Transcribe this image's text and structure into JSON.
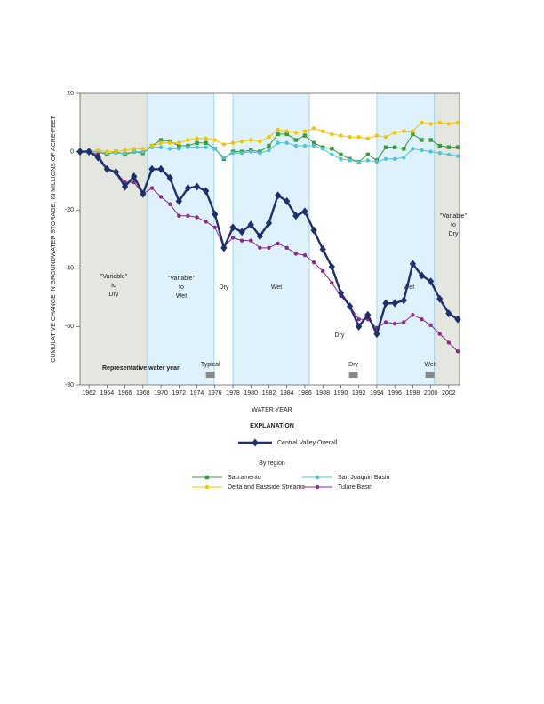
{
  "chart_data": {
    "type": "line",
    "y_label": "CUMULATIVE CHANGE IN GROUNDWATER STORAGE, IN MILLIONS OF ACRE-FEET",
    "x_label": "WATER YEAR",
    "x": [
      1961,
      1962,
      1963,
      1964,
      1965,
      1966,
      1967,
      1968,
      1969,
      1970,
      1971,
      1972,
      1973,
      1974,
      1975,
      1976,
      1977,
      1978,
      1979,
      1980,
      1981,
      1982,
      1983,
      1984,
      1985,
      1986,
      1987,
      1988,
      1989,
      1990,
      1991,
      1992,
      1993,
      1994,
      1995,
      1996,
      1997,
      1998,
      1999,
      2000,
      2001,
      2002,
      2003
    ],
    "series": [
      {
        "name": "Central Valley Overall",
        "color": "#1f2f6e",
        "marker": "diamond",
        "values": [
          0,
          0,
          -2,
          -6,
          -7,
          -12,
          -8.5,
          -14.5,
          -6,
          -6,
          -9,
          -17,
          -12.5,
          -12,
          -13.5,
          -21.5,
          -33,
          -26,
          -27.5,
          -25,
          -29,
          -24.5,
          -15,
          -17,
          -22,
          -20.5,
          -27,
          -33.5,
          -39.5,
          -48.5,
          -53,
          -60,
          -56,
          -62.5,
          -52,
          -52,
          -51,
          -38.5,
          -42.5,
          -44.5,
          -50.5,
          -55.5,
          -57.5
        ]
      },
      {
        "name": "Sacramento",
        "color": "#3b9b3b",
        "marker": "square",
        "values": [
          0,
          0,
          0,
          -1,
          0,
          -1,
          0,
          -0.5,
          2,
          4,
          3.5,
          2,
          2,
          3,
          3,
          1,
          -2.5,
          0,
          0,
          0.5,
          0,
          2,
          6,
          6,
          4,
          5.5,
          3,
          1.5,
          1,
          -1,
          -2.5,
          -3.5,
          -1,
          -3,
          1.5,
          1.5,
          1,
          6,
          4,
          4,
          2,
          1.5,
          1.5
        ]
      },
      {
        "name": "San Joaquin Basin",
        "color": "#4cc5d6",
        "marker": "circle",
        "values": [
          0,
          0,
          0,
          -0.5,
          -0.5,
          -0.5,
          0,
          0,
          1.5,
          1.5,
          1,
          1,
          1.5,
          1.5,
          1.5,
          1,
          -2,
          -0.5,
          -0.5,
          0,
          -0.5,
          0.5,
          3,
          3,
          2,
          2,
          2,
          1,
          -1,
          -2.5,
          -3,
          -3.5,
          -3,
          -3.5,
          -2.5,
          -2.5,
          -2,
          1,
          0.5,
          0,
          -0.5,
          -1,
          -1.5
        ]
      },
      {
        "name": "Delta and Eastside Streams",
        "color": "#f5c400",
        "marker": "circle",
        "values": [
          0,
          0,
          0.5,
          0,
          0,
          0.5,
          1,
          1,
          2,
          3,
          3,
          3,
          4,
          4.5,
          4.5,
          4,
          2.5,
          3,
          3.5,
          4,
          3.5,
          5,
          7.5,
          7,
          6.5,
          7,
          8,
          7,
          6,
          5.5,
          5,
          5,
          4.5,
          5.5,
          5,
          6.5,
          7,
          7,
          10,
          9.5,
          10,
          9.5,
          10
        ]
      },
      {
        "name": "Tulare Basin",
        "color": "#8b2a8b",
        "marker": "circle",
        "values": [
          0,
          0,
          -1,
          -6,
          -7,
          -10.5,
          -10.5,
          -14.5,
          -12.5,
          -15.5,
          -18,
          -22,
          -22,
          -22.5,
          -24,
          -26,
          -32.5,
          -29.5,
          -30.5,
          -30.5,
          -33,
          -33,
          -31.5,
          -33,
          -35,
          -35.5,
          -38,
          -41,
          -45,
          -49.5,
          -53,
          -57.5,
          -57.5,
          -60.5,
          -58.5,
          -59,
          -58.5,
          -56,
          -57.5,
          -59.5,
          -62.5,
          -65.5,
          -68.5
        ]
      }
    ],
    "xlim": [
      1961,
      2003.2
    ],
    "xticks": [
      1962,
      1964,
      1966,
      1968,
      1970,
      1972,
      1974,
      1976,
      1978,
      1980,
      1982,
      1984,
      1986,
      1988,
      1990,
      1992,
      1994,
      1996,
      1998,
      2000,
      2002
    ],
    "ylim": [
      -80,
      20
    ],
    "yticks": [
      20,
      0,
      -20,
      -40,
      -60,
      -80
    ],
    "regions": [
      {
        "start": 1961,
        "end": 1968.5,
        "color": "#e4e6e0"
      },
      {
        "start": 1968.5,
        "end": 1975.9,
        "color": "#dff1fb"
      },
      {
        "start": 1978,
        "end": 1986.5,
        "color": "#dff1fb"
      },
      {
        "start": 1994,
        "end": 2000.4,
        "color": "#dff1fb"
      },
      {
        "start": 2000.4,
        "end": 2003.2,
        "color": "#e4e6e0"
      }
    ],
    "annotations": [
      [
        "\"Variable\"",
        "to",
        "Dry"
      ],
      [
        "\"Variable\"",
        "to",
        "Wet"
      ],
      [
        "Dry"
      ],
      [
        "Wet"
      ],
      [
        "Dry"
      ],
      [
        "Wet"
      ],
      [
        "\"Variable\"",
        "to",
        "Dry"
      ]
    ],
    "representative": {
      "label": "Representative water year",
      "years": [
        {
          "label": "Typical",
          "year": 1975.5
        },
        {
          "label": "Dry",
          "year": 1991.4
        },
        {
          "label": "Wet",
          "year": 1999.9
        }
      ]
    },
    "legend_title": "EXPLANATION",
    "legend_subtitle": "By region"
  }
}
